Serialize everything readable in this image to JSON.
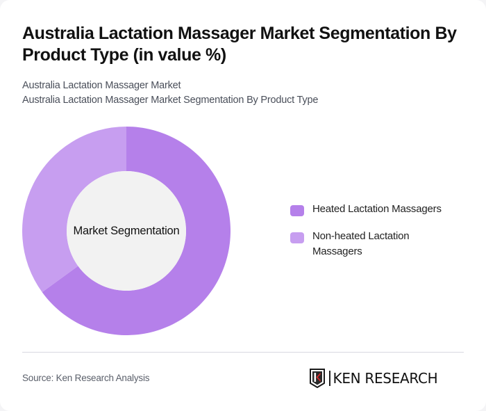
{
  "header": {
    "title": "Australia Lactation Massager Market Segmentation By Product Type (in value %)",
    "subtitle_line1": "Australia Lactation Massager Market",
    "subtitle_line2": "Australia Lactation Massager Market Segmentation By Product Type"
  },
  "chart": {
    "center_label": "Market Segmentation",
    "legend": [
      {
        "label": "Heated Lactation Massagers",
        "color": "#b580ea"
      },
      {
        "label": "Non-heated Lactation Massagers",
        "color": "#c79ef0"
      }
    ]
  },
  "footer": {
    "source": "Source: Ken Research Analysis",
    "logo_text": "KEN RESEARCH"
  },
  "chart_data": {
    "type": "pie",
    "subtype": "donut",
    "title": "Australia Lactation Massager Market Segmentation By Product Type (in value %)",
    "center_label": "Market Segmentation",
    "categories": [
      "Heated Lactation Massagers",
      "Non-heated Lactation Massagers"
    ],
    "values": [
      65,
      35
    ],
    "colors": [
      "#b580ea",
      "#c79ef0"
    ],
    "unit": "%",
    "legend_position": "right",
    "start_angle": "12 o'clock, clockwise"
  }
}
